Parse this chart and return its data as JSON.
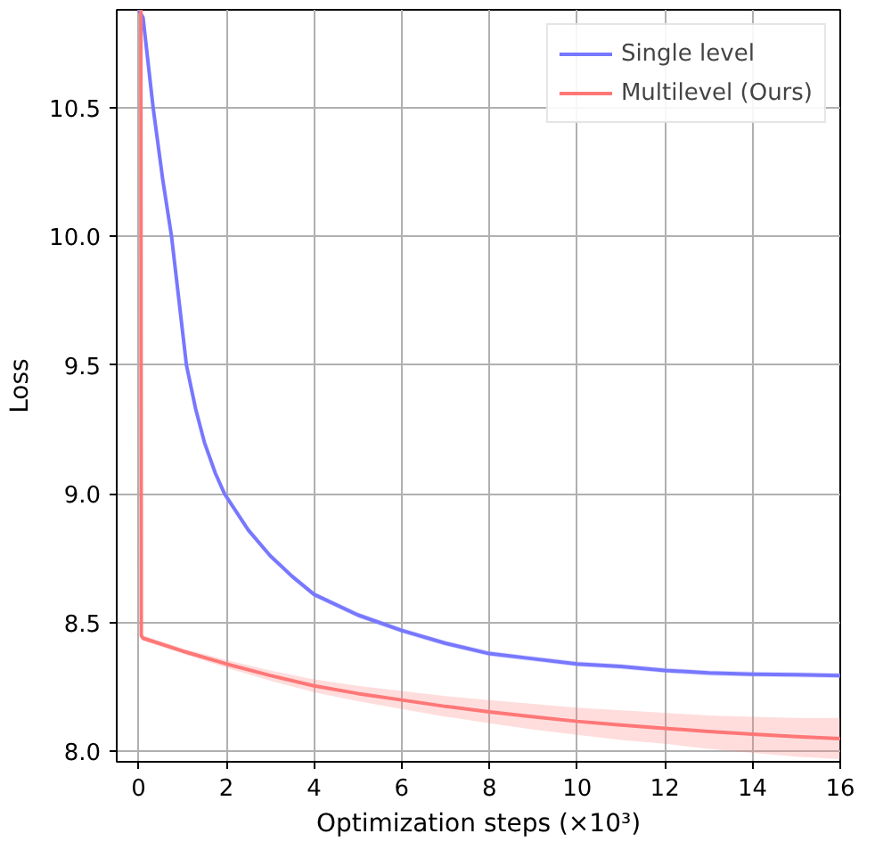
{
  "chart_data": {
    "type": "line",
    "xlabel": "Optimization steps (×10³)",
    "ylabel": "Loss",
    "xlim": [
      -0.5,
      16
    ],
    "ylim": [
      7.96,
      10.88
    ],
    "xticks": [
      0,
      2,
      4,
      6,
      8,
      10,
      12,
      14,
      16
    ],
    "yticks": [
      {
        "value": 8,
        "label": "8.0"
      },
      {
        "value": 8.5,
        "label": "8.5"
      },
      {
        "value": 9,
        "label": "9.0"
      },
      {
        "value": 9.5,
        "label": "9.5"
      },
      {
        "value": 10,
        "label": "10.0"
      },
      {
        "value": 10.5,
        "label": "10.5"
      }
    ],
    "grid": true,
    "legend": "top right",
    "series": [
      {
        "name": "Single level",
        "color": "#7777ff",
        "x": [
          0.0,
          0.1,
          0.33,
          0.55,
          0.75,
          0.9,
          1.09,
          1.3,
          1.5,
          1.75,
          1.96,
          2.5,
          3,
          3.5,
          4,
          5,
          6,
          7,
          8,
          9,
          10,
          11,
          12,
          13,
          14,
          15,
          16
        ],
        "values": [
          10.88,
          10.85,
          10.5,
          10.22,
          10.0,
          9.78,
          9.5,
          9.33,
          9.2,
          9.08,
          9.0,
          8.86,
          8.76,
          8.68,
          8.61,
          8.53,
          8.47,
          8.42,
          8.38,
          8.36,
          8.34,
          8.33,
          8.315,
          8.305,
          8.3,
          8.298,
          8.295
        ],
        "lower": [
          10.87,
          10.84,
          10.49,
          10.21,
          9.99,
          9.77,
          9.49,
          9.32,
          9.19,
          9.07,
          8.99,
          8.85,
          8.75,
          8.67,
          8.6,
          8.52,
          8.46,
          8.41,
          8.37,
          8.35,
          8.33,
          8.32,
          8.305,
          8.295,
          8.29,
          8.288,
          8.285
        ],
        "upper": [
          10.88,
          10.86,
          10.51,
          10.23,
          10.01,
          9.79,
          9.51,
          9.34,
          9.21,
          9.09,
          9.01,
          8.87,
          8.77,
          8.69,
          8.62,
          8.54,
          8.48,
          8.43,
          8.39,
          8.37,
          8.35,
          8.34,
          8.325,
          8.315,
          8.31,
          8.308,
          8.305
        ]
      },
      {
        "name": "Multilevel (Ours)",
        "color": "#ff7777",
        "x": [
          0.05,
          0.06,
          0.1,
          1,
          2,
          3,
          4,
          5,
          6,
          7,
          8,
          9,
          10,
          11,
          12,
          13,
          14,
          15,
          16
        ],
        "values": [
          10.88,
          8.45,
          8.44,
          8.39,
          8.34,
          8.295,
          8.255,
          8.225,
          8.2,
          8.175,
          8.154,
          8.135,
          8.117,
          8.103,
          8.09,
          8.078,
          8.067,
          8.058,
          8.05
        ],
        "lower": [
          10.88,
          8.44,
          8.43,
          8.38,
          8.325,
          8.275,
          8.23,
          8.195,
          8.165,
          8.135,
          8.11,
          8.085,
          8.065,
          8.045,
          8.03,
          8.01,
          7.995,
          7.98,
          7.97
        ],
        "upper": [
          10.88,
          8.46,
          8.45,
          8.4,
          8.355,
          8.315,
          8.28,
          8.255,
          8.235,
          8.215,
          8.2,
          8.185,
          8.17,
          8.16,
          8.15,
          8.14,
          8.135,
          8.13,
          8.13
        ]
      }
    ]
  }
}
